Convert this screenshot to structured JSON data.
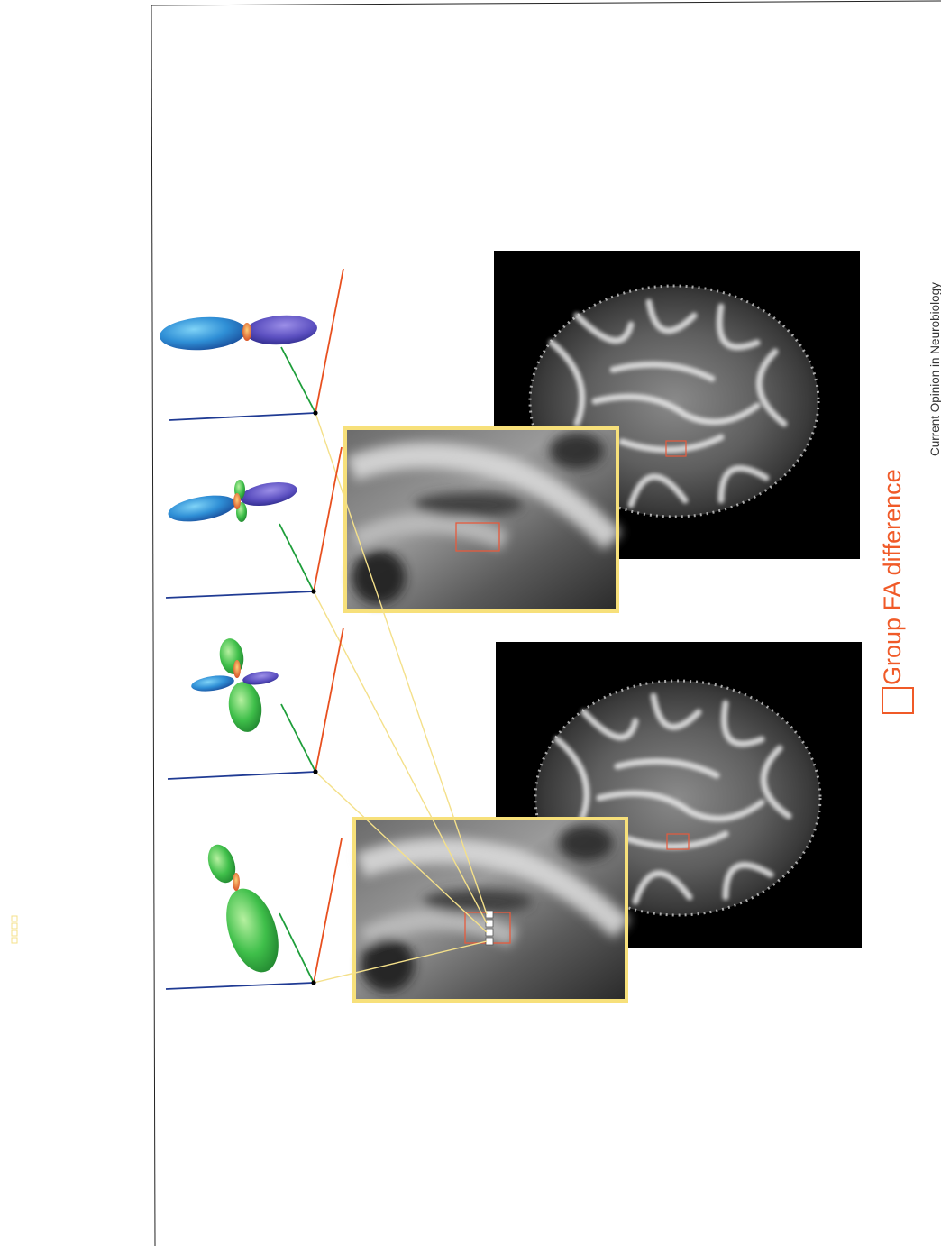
{
  "figure": {
    "legend": {
      "label": "Group FA difference",
      "color": "#f05a28"
    },
    "credit": "Current Opinion in Neurobiology",
    "colors": {
      "axis_x": "#1f3a93",
      "axis_y": "#1e9e3a",
      "axis_z": "#e8501f",
      "connector": "#f4e08a",
      "zoom_border": "#f7e07a",
      "roi": "#e65a3c",
      "lobe_blue": "#3a8fd8",
      "lobe_purple": "#6a5fc8",
      "lobe_green": "#3fbf4a",
      "lobe_orange": "#e8742a"
    },
    "icons": {
      "glyph": "orientation-distribution-glyph",
      "brain": "brain-slice",
      "zoom": "zoom-inset"
    }
  }
}
